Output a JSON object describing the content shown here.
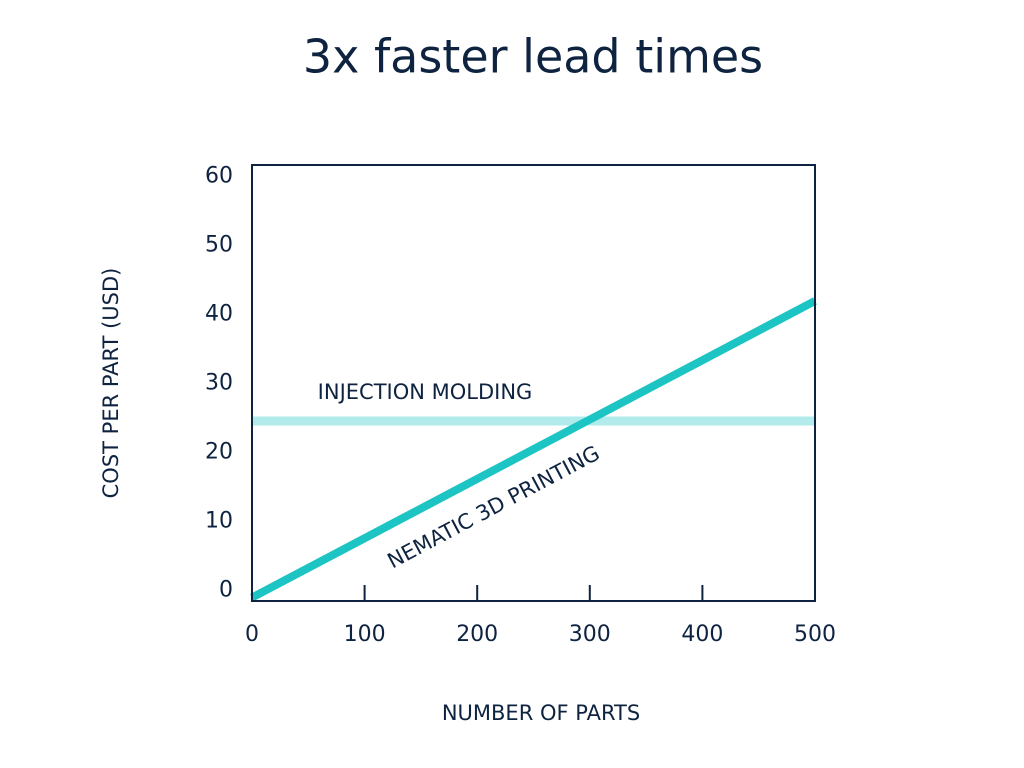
{
  "chart_data": {
    "type": "line",
    "title": "3x faster lead times",
    "x_label": "NUMBER OF PARTS",
    "y_label": "COST PER PART (USD)",
    "x": [
      0,
      500
    ],
    "series": [
      {
        "name": "INJECTION MOLDING",
        "color": "#b2ebeb",
        "values": [
          24.6,
          24.6
        ]
      },
      {
        "name": "NEMATIC 3D PRINTING",
        "color": "#1cc4c4",
        "values": [
          -1,
          42
        ]
      }
    ],
    "xlim": [
      0,
      500
    ],
    "ylim": [
      -1.5,
      61.7
    ],
    "xticks": [
      0,
      100,
      200,
      300,
      400,
      500
    ],
    "yticks": [
      0,
      10,
      20,
      30,
      40,
      50,
      60
    ]
  }
}
